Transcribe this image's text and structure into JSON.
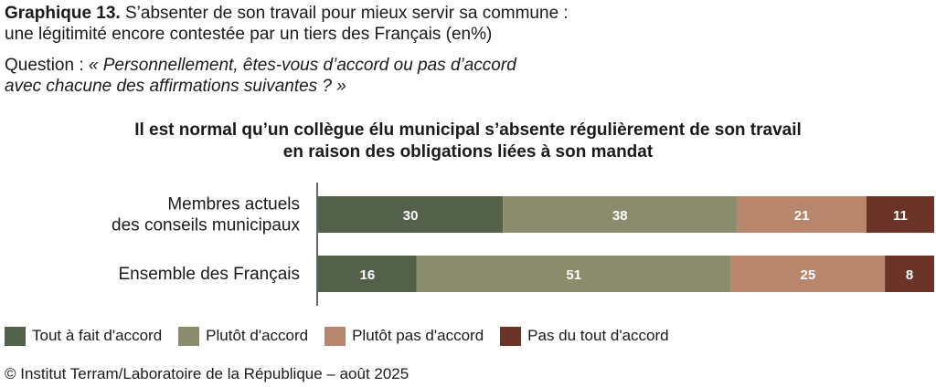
{
  "header": {
    "label": "Graphique 13.",
    "title_rest": " S’absenter de son travail pour mieux servir sa commune :",
    "title_line2": "une légitimité encore contestée par un tiers des Français (en%)"
  },
  "question": {
    "prefix": "Question : ",
    "line1": "« Personnellement, êtes-vous d’accord ou pas d’accord",
    "line2": "avec chacune des affirmations suivantes ? »"
  },
  "chart_data": {
    "type": "bar",
    "orientation": "horizontal",
    "stacked": true,
    "title": "Il est normal qu’un collègue élu municipal s’absente régulièrement de son travail en raison des obligations liées à son mandat",
    "title_lines": [
      "Il est normal qu’un collègue élu municipal s’absente régulièrement de son travail",
      "en raison des obligations liées à son mandat"
    ],
    "categories": [
      [
        "Membres actuels",
        "des conseils municipaux"
      ],
      [
        "Ensemble des Français"
      ]
    ],
    "series": [
      {
        "name": "Tout à fait d'accord",
        "color": "#53614b",
        "values": [
          30,
          16
        ]
      },
      {
        "name": "Plutôt d'accord",
        "color": "#8a8c6b",
        "values": [
          38,
          51
        ]
      },
      {
        "name": "Plutôt pas d'accord",
        "color": "#b8866d",
        "values": [
          21,
          25
        ]
      },
      {
        "name": "Pas du tout d'accord",
        "color": "#6c3426",
        "values": [
          11,
          8
        ]
      }
    ],
    "xlim": [
      0,
      100
    ],
    "legend": "bottom"
  },
  "source": "© Institut Terram/Laboratoire de la République – août 2025"
}
